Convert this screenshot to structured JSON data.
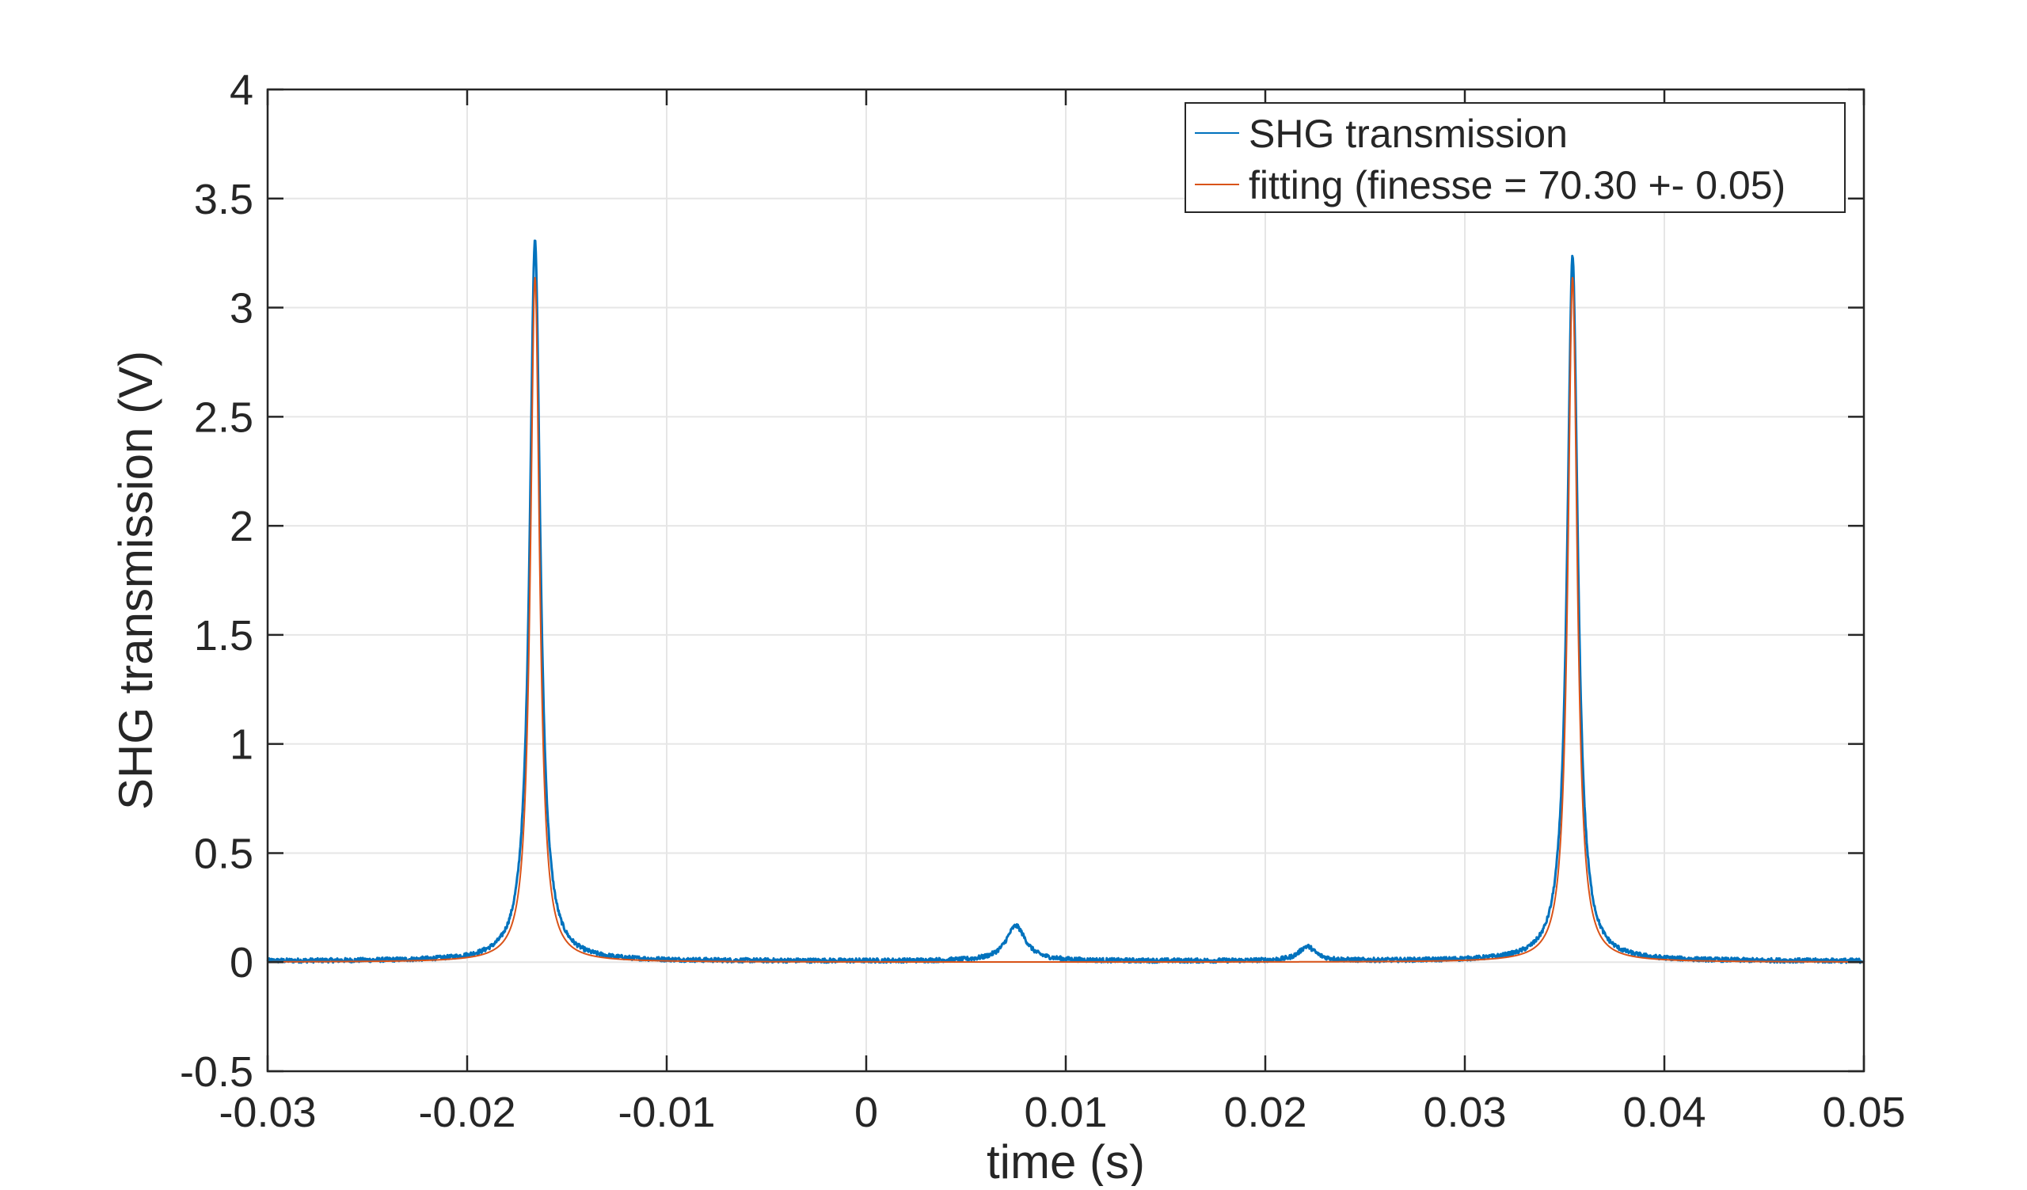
{
  "chart_data": {
    "type": "line",
    "title": "",
    "xlabel": "time (s)",
    "ylabel": "SHG transmission (V)",
    "xlim": [
      -0.03,
      0.05
    ],
    "ylim": [
      -0.5,
      4
    ],
    "xticks": [
      -0.03,
      -0.02,
      -0.01,
      0,
      0.01,
      0.02,
      0.03,
      0.04,
      0.05
    ],
    "yticks": [
      -0.5,
      0,
      0.5,
      1,
      1.5,
      2,
      2.5,
      3,
      3.5,
      4
    ],
    "xtick_labels": [
      "-0.03",
      "-0.02",
      "-0.01",
      "0",
      "0.01",
      "0.02",
      "0.03",
      "0.04",
      "0.05"
    ],
    "ytick_labels": [
      "-0.5",
      "0",
      "0.5",
      "1",
      "1.5",
      "2",
      "2.5",
      "3",
      "3.5",
      "4"
    ],
    "grid": true,
    "legend_position": "top-right",
    "series": [
      {
        "name": "SHG transmission",
        "color": "#0072BD",
        "peaks": [
          {
            "x": -0.0166,
            "height": 3.31,
            "hwhm": 0.00032
          },
          {
            "x": 0.0354,
            "height": 3.23,
            "hwhm": 0.00032
          },
          {
            "x": 0.0075,
            "height": 0.16,
            "hwhm": 0.0006
          },
          {
            "x": 0.0221,
            "height": 0.065,
            "hwhm": 0.0005
          }
        ],
        "baseline": 0.005,
        "noise": 0.01
      },
      {
        "name": "fitting (finesse = 70.30 +- 0.05)",
        "color": "#D95319",
        "peaks": [
          {
            "x": -0.0166,
            "height": 3.14,
            "hwhm": 0.00028
          },
          {
            "x": 0.0354,
            "height": 3.14,
            "hwhm": 0.00028
          }
        ],
        "baseline": 0
      }
    ]
  }
}
